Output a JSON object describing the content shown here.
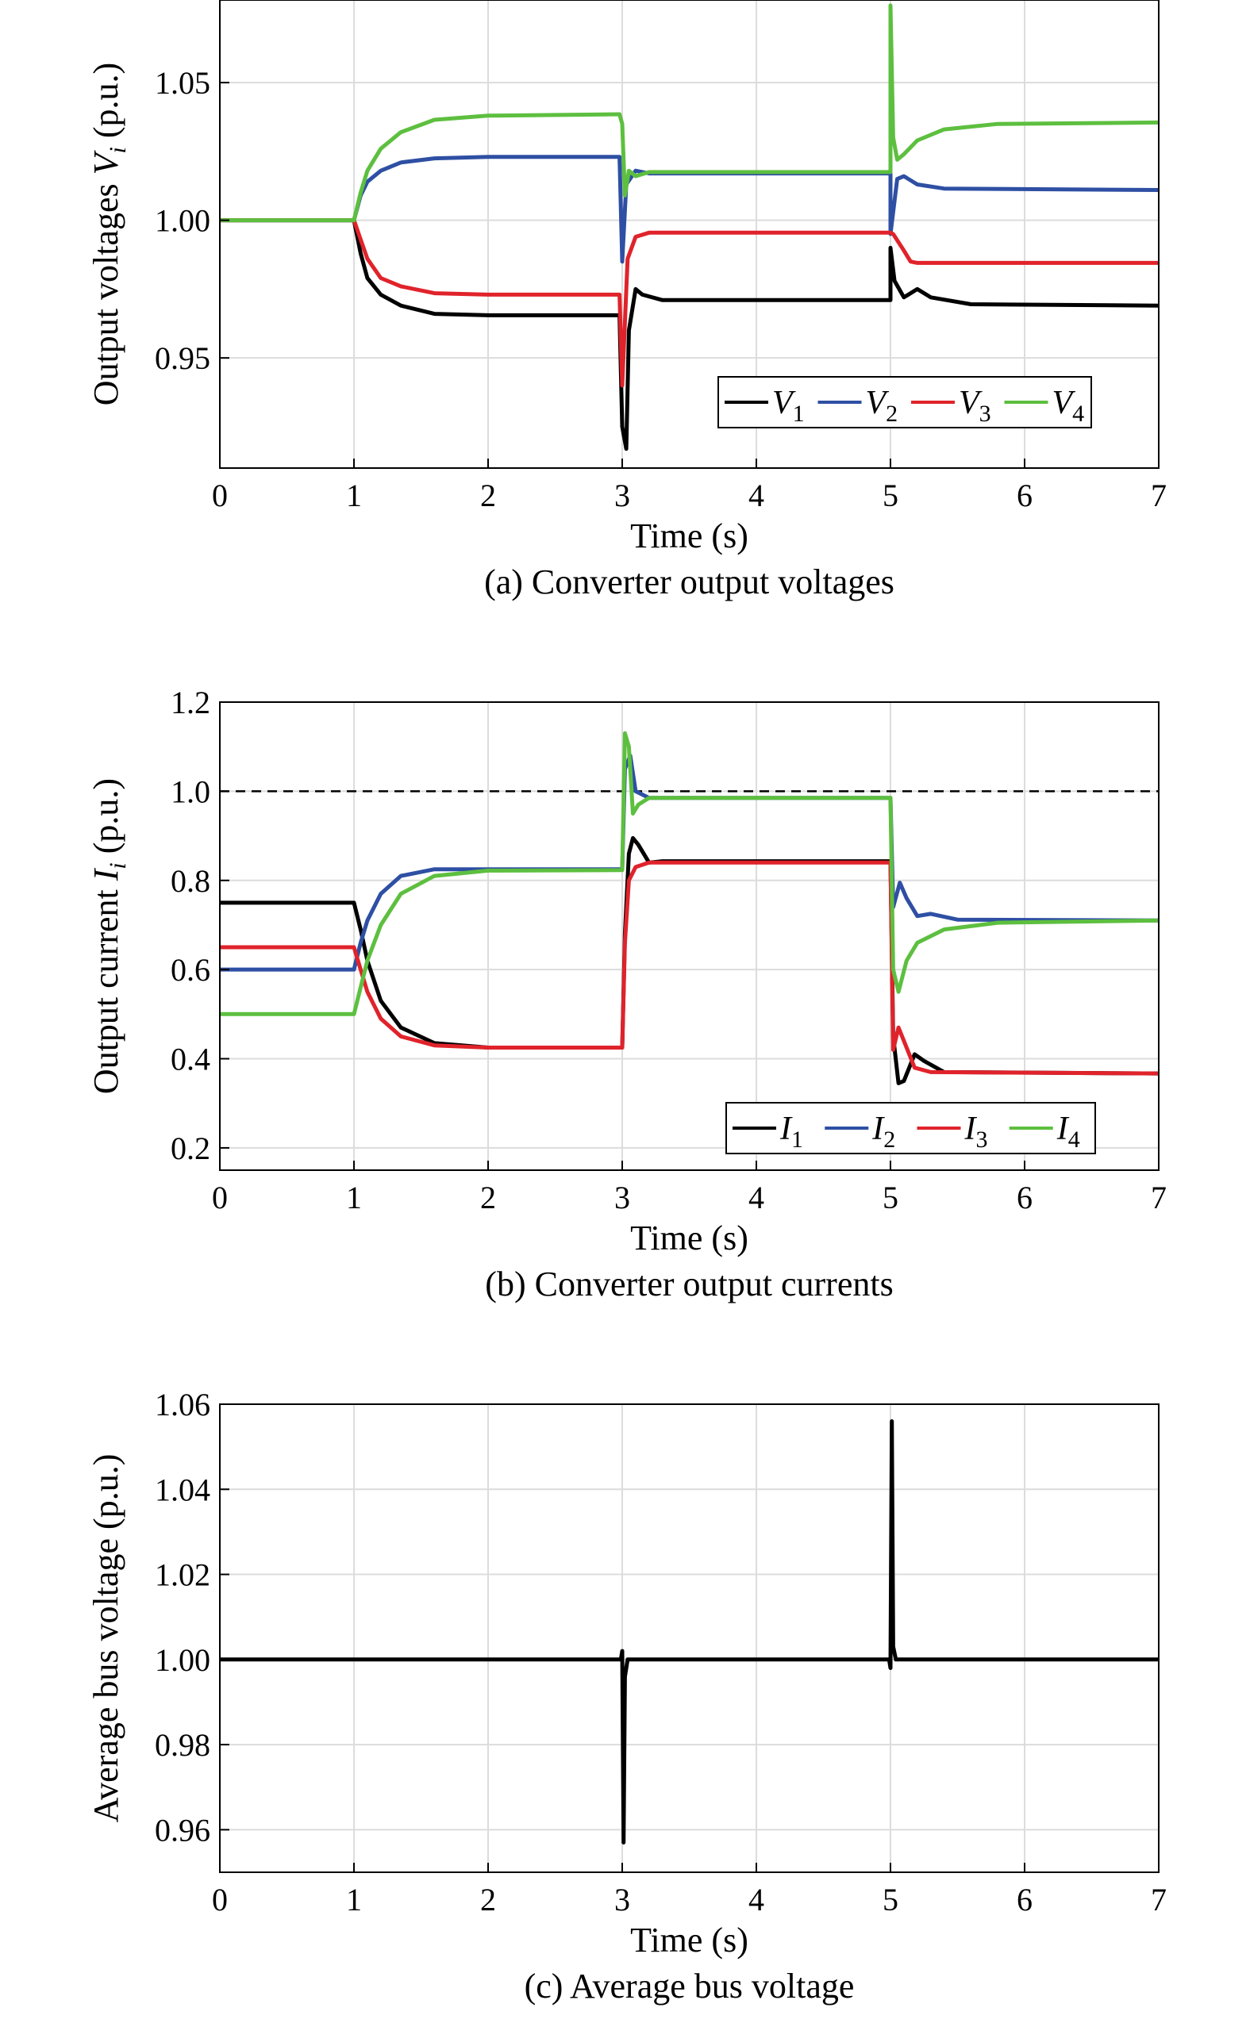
{
  "chart_data": [
    {
      "type": "line",
      "caption": "(a) Converter output voltages",
      "xlabel": "Time (s)",
      "ylabel": "Output voltages V_i (p.u.)",
      "ylabel_main": "Output voltages ",
      "ylabel_var": "V",
      "ylabel_sub": "i",
      "ylabel_unit": " (p.u.)",
      "xlim": [
        0,
        7
      ],
      "ylim": [
        0.91,
        1.08
      ],
      "xticks": [
        0,
        1,
        2,
        3,
        4,
        5,
        6,
        7
      ],
      "xtick_labels": [
        "0",
        "1",
        "2",
        "3",
        "4",
        "5",
        "6",
        "7"
      ],
      "yticks": [
        0.95,
        1.0,
        1.05
      ],
      "ytick_labels": [
        "0.95",
        "1.00",
        "1.05"
      ],
      "grid": true,
      "legend_placement": "bottom-right",
      "series": [
        {
          "name": "V1",
          "var": "V",
          "sub": "1",
          "color": "#000000",
          "points": [
            [
              0,
              1.0
            ],
            [
              1,
              1.0
            ],
            [
              1.05,
              0.988
            ],
            [
              1.1,
              0.979
            ],
            [
              1.2,
              0.973
            ],
            [
              1.35,
              0.969
            ],
            [
              1.6,
              0.966
            ],
            [
              2,
              0.9655
            ],
            [
              2.98,
              0.9655
            ],
            [
              3.0,
              0.925
            ],
            [
              3.03,
              0.917
            ],
            [
              3.05,
              0.96
            ],
            [
              3.1,
              0.975
            ],
            [
              3.15,
              0.973
            ],
            [
              3.3,
              0.971
            ],
            [
              5,
              0.971
            ],
            [
              5.0,
              0.99
            ],
            [
              5.03,
              0.978
            ],
            [
              5.1,
              0.972
            ],
            [
              5.2,
              0.975
            ],
            [
              5.3,
              0.972
            ],
            [
              5.6,
              0.9695
            ],
            [
              7,
              0.969
            ]
          ]
        },
        {
          "name": "V2",
          "var": "V",
          "sub": "2",
          "color": "#2e4fa3",
          "points": [
            [
              0,
              1.0
            ],
            [
              1,
              1.0
            ],
            [
              1.05,
              1.009
            ],
            [
              1.1,
              1.014
            ],
            [
              1.2,
              1.018
            ],
            [
              1.35,
              1.021
            ],
            [
              1.6,
              1.0225
            ],
            [
              2,
              1.023
            ],
            [
              2.98,
              1.023
            ],
            [
              3.0,
              0.985
            ],
            [
              3.03,
              1.013
            ],
            [
              3.1,
              1.018
            ],
            [
              3.2,
              1.017
            ],
            [
              3.5,
              1.017
            ],
            [
              5,
              1.017
            ],
            [
              5.0,
              0.995
            ],
            [
              5.05,
              1.015
            ],
            [
              5.1,
              1.016
            ],
            [
              5.2,
              1.013
            ],
            [
              5.4,
              1.0115
            ],
            [
              7,
              1.011
            ]
          ]
        },
        {
          "name": "V3",
          "var": "V",
          "sub": "3",
          "color": "#e0232b",
          "points": [
            [
              0,
              1.0
            ],
            [
              1,
              1.0
            ],
            [
              1.05,
              0.993
            ],
            [
              1.1,
              0.986
            ],
            [
              1.2,
              0.979
            ],
            [
              1.35,
              0.976
            ],
            [
              1.6,
              0.9735
            ],
            [
              2,
              0.973
            ],
            [
              2.98,
              0.973
            ],
            [
              3.0,
              0.94
            ],
            [
              3.04,
              0.986
            ],
            [
              3.1,
              0.994
            ],
            [
              3.2,
              0.9955
            ],
            [
              5,
              0.9955
            ],
            [
              5.02,
              0.995
            ],
            [
              5.1,
              0.989
            ],
            [
              5.15,
              0.985
            ],
            [
              5.2,
              0.9845
            ],
            [
              5.4,
              0.9845
            ],
            [
              7,
              0.9845
            ]
          ]
        },
        {
          "name": "V4",
          "var": "V",
          "sub": "4",
          "color": "#5dbf3f",
          "points": [
            [
              0,
              1.0
            ],
            [
              1,
              1.0
            ],
            [
              1.05,
              1.01
            ],
            [
              1.1,
              1.018
            ],
            [
              1.2,
              1.026
            ],
            [
              1.35,
              1.032
            ],
            [
              1.6,
              1.0365
            ],
            [
              2,
              1.038
            ],
            [
              2.98,
              1.0385
            ],
            [
              3.0,
              1.035
            ],
            [
              3.02,
              1.009
            ],
            [
              3.05,
              1.018
            ],
            [
              3.1,
              1.016
            ],
            [
              3.2,
              1.0175
            ],
            [
              5,
              1.0175
            ],
            [
              5.0,
              1.078
            ],
            [
              5.02,
              1.03
            ],
            [
              5.05,
              1.022
            ],
            [
              5.1,
              1.024
            ],
            [
              5.2,
              1.029
            ],
            [
              5.4,
              1.033
            ],
            [
              5.8,
              1.035
            ],
            [
              7,
              1.0355
            ]
          ]
        }
      ]
    },
    {
      "type": "line",
      "caption": "(b) Converter output currents",
      "xlabel": "Time (s)",
      "ylabel": "Output current I_i (p.u.)",
      "ylabel_main": "Output current ",
      "ylabel_var": "I",
      "ylabel_sub": "i",
      "ylabel_unit": " (p.u.)",
      "xlim": [
        0,
        7
      ],
      "ylim": [
        0.15,
        1.2
      ],
      "xticks": [
        0,
        1,
        2,
        3,
        4,
        5,
        6,
        7
      ],
      "xtick_labels": [
        "0",
        "1",
        "2",
        "3",
        "4",
        "5",
        "6",
        "7"
      ],
      "yticks": [
        0.2,
        0.4,
        0.6,
        0.8,
        1.0,
        1.2
      ],
      "ytick_labels": [
        "0.2",
        "0.4",
        "0.6",
        "0.8",
        "1.0",
        "1.2"
      ],
      "grid": true,
      "reference_line": 1.0,
      "legend_placement": "bottom-right",
      "series": [
        {
          "name": "I1",
          "var": "I",
          "sub": "1",
          "color": "#000000",
          "points": [
            [
              0,
              0.75
            ],
            [
              1,
              0.75
            ],
            [
              1.05,
              0.69
            ],
            [
              1.1,
              0.62
            ],
            [
              1.2,
              0.53
            ],
            [
              1.35,
              0.47
            ],
            [
              1.6,
              0.435
            ],
            [
              2,
              0.425
            ],
            [
              3,
              0.425
            ],
            [
              3.02,
              0.68
            ],
            [
              3.05,
              0.86
            ],
            [
              3.08,
              0.895
            ],
            [
              3.12,
              0.88
            ],
            [
              3.2,
              0.84
            ],
            [
              3.3,
              0.843
            ],
            [
              5,
              0.843
            ],
            [
              5.02,
              0.45
            ],
            [
              5.06,
              0.345
            ],
            [
              5.1,
              0.35
            ],
            [
              5.18,
              0.41
            ],
            [
              5.25,
              0.395
            ],
            [
              5.4,
              0.37
            ],
            [
              7,
              0.367
            ]
          ]
        },
        {
          "name": "I2",
          "var": "I",
          "sub": "2",
          "color": "#2e4fa3",
          "points": [
            [
              0,
              0.6
            ],
            [
              1,
              0.6
            ],
            [
              1.05,
              0.66
            ],
            [
              1.1,
              0.71
            ],
            [
              1.2,
              0.77
            ],
            [
              1.35,
              0.81
            ],
            [
              1.6,
              0.825
            ],
            [
              2,
              0.825
            ],
            [
              3,
              0.825
            ],
            [
              3.02,
              1.05
            ],
            [
              3.06,
              1.08
            ],
            [
              3.1,
              1.0
            ],
            [
              3.2,
              0.985
            ],
            [
              5,
              0.985
            ],
            [
              5.02,
              0.74
            ],
            [
              5.07,
              0.795
            ],
            [
              5.12,
              0.76
            ],
            [
              5.2,
              0.72
            ],
            [
              5.3,
              0.725
            ],
            [
              5.5,
              0.712
            ],
            [
              7,
              0.71
            ]
          ]
        },
        {
          "name": "I3",
          "var": "I",
          "sub": "3",
          "color": "#e0232b",
          "points": [
            [
              0,
              0.65
            ],
            [
              1,
              0.65
            ],
            [
              1.05,
              0.6
            ],
            [
              1.1,
              0.55
            ],
            [
              1.2,
              0.49
            ],
            [
              1.35,
              0.45
            ],
            [
              1.6,
              0.43
            ],
            [
              2,
              0.425
            ],
            [
              3,
              0.425
            ],
            [
              3.02,
              0.66
            ],
            [
              3.05,
              0.8
            ],
            [
              3.1,
              0.83
            ],
            [
              3.2,
              0.84
            ],
            [
              5,
              0.84
            ],
            [
              5.02,
              0.42
            ],
            [
              5.06,
              0.47
            ],
            [
              5.1,
              0.44
            ],
            [
              5.18,
              0.38
            ],
            [
              5.3,
              0.37
            ],
            [
              7,
              0.367
            ]
          ]
        },
        {
          "name": "I4",
          "var": "I",
          "sub": "4",
          "color": "#5dbf3f",
          "points": [
            [
              0,
              0.5
            ],
            [
              1,
              0.5
            ],
            [
              1.05,
              0.56
            ],
            [
              1.1,
              0.62
            ],
            [
              1.2,
              0.7
            ],
            [
              1.35,
              0.77
            ],
            [
              1.6,
              0.81
            ],
            [
              2,
              0.822
            ],
            [
              3,
              0.823
            ],
            [
              3.02,
              1.13
            ],
            [
              3.05,
              1.1
            ],
            [
              3.08,
              0.95
            ],
            [
              3.12,
              0.97
            ],
            [
              3.2,
              0.985
            ],
            [
              5,
              0.985
            ],
            [
              5.02,
              0.6
            ],
            [
              5.06,
              0.55
            ],
            [
              5.12,
              0.62
            ],
            [
              5.2,
              0.66
            ],
            [
              5.4,
              0.69
            ],
            [
              5.8,
              0.705
            ],
            [
              7,
              0.71
            ]
          ]
        }
      ]
    },
    {
      "type": "line",
      "caption": "(c) Average bus voltage",
      "xlabel": "Time (s)",
      "ylabel": "Average bus voltage (p.u.)",
      "ylabel_main": "Average bus voltage (p.u.)",
      "xlim": [
        0,
        7
      ],
      "ylim": [
        0.95,
        1.06
      ],
      "xticks": [
        0,
        1,
        2,
        3,
        4,
        5,
        6,
        7
      ],
      "xtick_labels": [
        "0",
        "1",
        "2",
        "3",
        "4",
        "5",
        "6",
        "7"
      ],
      "yticks": [
        0.96,
        0.98,
        1.0,
        1.02,
        1.04,
        1.06
      ],
      "ytick_labels": [
        "0.96",
        "0.98",
        "1.00",
        "1.02",
        "1.04",
        "1.06"
      ],
      "grid": true,
      "series": [
        {
          "name": "",
          "color": "#000000",
          "points": [
            [
              0,
              1.0
            ],
            [
              2.99,
              1.0
            ],
            [
              3.0,
              1.002
            ],
            [
              3.01,
              0.957
            ],
            [
              3.02,
              0.996
            ],
            [
              3.04,
              1.0
            ],
            [
              4.99,
              1.0
            ],
            [
              5.0,
              0.998
            ],
            [
              5.01,
              1.056
            ],
            [
              5.02,
              1.003
            ],
            [
              5.04,
              1.0
            ],
            [
              7,
              1.0
            ]
          ]
        }
      ]
    }
  ]
}
